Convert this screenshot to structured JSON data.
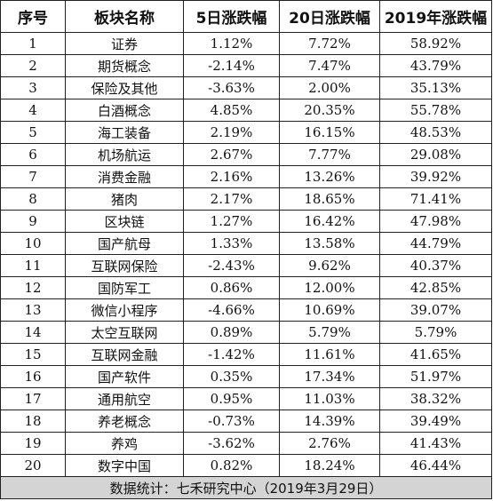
{
  "header": {
    "seq": "序号",
    "sector": "板块名称",
    "chg5": "5日涨跌幅",
    "chg20": "20日涨跌幅",
    "chgYear": "2019年涨跌幅"
  },
  "rows": [
    {
      "seq": "1",
      "name": "证券",
      "chg5": "1.12%",
      "chg20": "7.72%",
      "chgYear": "58.92%"
    },
    {
      "seq": "2",
      "name": "期货概念",
      "chg5": "-2.14%",
      "chg20": "7.47%",
      "chgYear": "43.79%"
    },
    {
      "seq": "3",
      "name": "保险及其他",
      "chg5": "-3.63%",
      "chg20": "2.00%",
      "chgYear": "35.13%"
    },
    {
      "seq": "4",
      "name": "白酒概念",
      "chg5": "4.85%",
      "chg20": "20.35%",
      "chgYear": "55.78%"
    },
    {
      "seq": "5",
      "name": "海工装备",
      "chg5": "2.19%",
      "chg20": "16.15%",
      "chgYear": "48.53%"
    },
    {
      "seq": "6",
      "name": "机场航运",
      "chg5": "2.67%",
      "chg20": "7.77%",
      "chgYear": "29.08%"
    },
    {
      "seq": "7",
      "name": "消费金融",
      "chg5": "2.16%",
      "chg20": "13.26%",
      "chgYear": "39.92%"
    },
    {
      "seq": "8",
      "name": "猪肉",
      "chg5": "2.17%",
      "chg20": "18.65%",
      "chgYear": "71.41%"
    },
    {
      "seq": "9",
      "name": "区块链",
      "chg5": "1.27%",
      "chg20": "16.42%",
      "chgYear": "47.98%"
    },
    {
      "seq": "10",
      "name": "国产航母",
      "chg5": "1.33%",
      "chg20": "13.58%",
      "chgYear": "44.79%"
    },
    {
      "seq": "11",
      "name": "互联网保险",
      "chg5": "-2.43%",
      "chg20": "9.62%",
      "chgYear": "40.37%"
    },
    {
      "seq": "12",
      "name": "国防军工",
      "chg5": "0.86%",
      "chg20": "12.00%",
      "chgYear": "42.85%"
    },
    {
      "seq": "13",
      "name": "微信小程序",
      "chg5": "-4.66%",
      "chg20": "10.69%",
      "chgYear": "39.07%"
    },
    {
      "seq": "14",
      "name": "太空互联网",
      "chg5": "0.89%",
      "chg20": "5.79%",
      "chgYear": "5.79%"
    },
    {
      "seq": "15",
      "name": "互联网金融",
      "chg5": "-1.42%",
      "chg20": "11.61%",
      "chgYear": "41.65%"
    },
    {
      "seq": "16",
      "name": "国产软件",
      "chg5": "0.35%",
      "chg20": "17.34%",
      "chgYear": "51.97%"
    },
    {
      "seq": "17",
      "name": "通用航空",
      "chg5": "0.95%",
      "chg20": "11.03%",
      "chgYear": "38.32%"
    },
    {
      "seq": "18",
      "name": "养老概念",
      "chg5": "-0.73%",
      "chg20": "14.39%",
      "chgYear": "39.49%"
    },
    {
      "seq": "19",
      "name": "养鸡",
      "chg5": "-3.62%",
      "chg20": "2.76%",
      "chgYear": "41.43%"
    },
    {
      "seq": "20",
      "name": "数字中国",
      "chg5": "0.82%",
      "chg20": "18.24%",
      "chgYear": "46.44%"
    }
  ],
  "footer": "数据统计：七禾研究中心（2019年3月29日）"
}
